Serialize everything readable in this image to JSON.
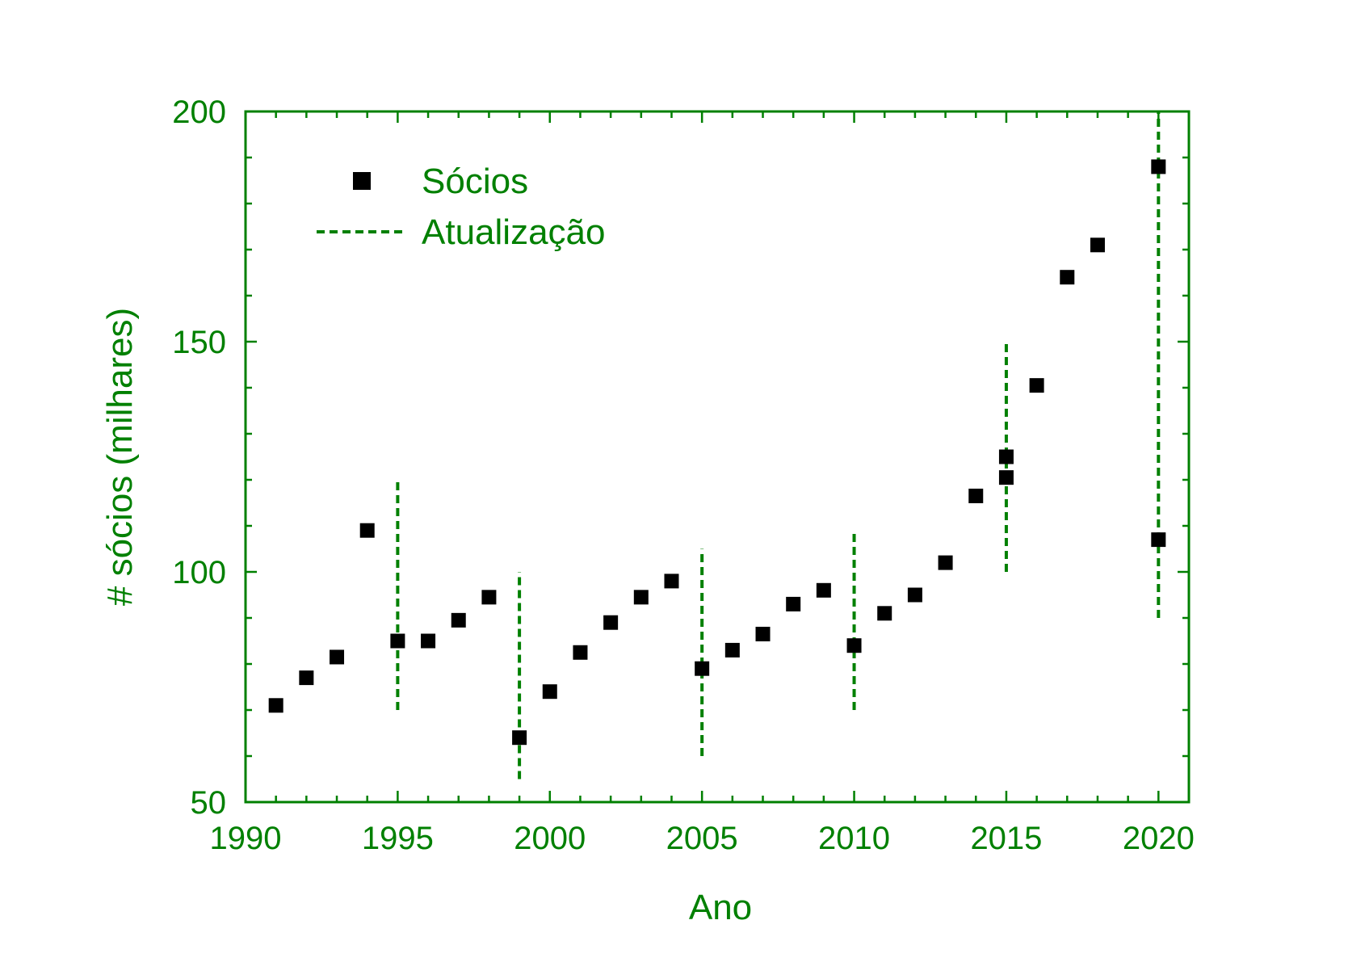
{
  "chart_data": {
    "type": "scatter",
    "title": "",
    "xlabel": "Ano",
    "ylabel": "# sócios (milhares)",
    "xlim": [
      1990,
      2021
    ],
    "ylim": [
      50,
      200
    ],
    "x_ticks": [
      1990,
      1995,
      2000,
      2005,
      2010,
      2015,
      2020
    ],
    "y_ticks": [
      50,
      100,
      150,
      200
    ],
    "x_tick_labels": [
      "1990",
      "1995",
      "2000",
      "2005",
      "2010",
      "2015",
      "2020"
    ],
    "y_tick_labels": [
      "50",
      "100",
      "150",
      "200"
    ],
    "x_minor_step": 1,
    "y_minor_step": 10,
    "grid": false,
    "legend_position": "top-left",
    "colors": {
      "axis": "#008000",
      "marker": "#000000",
      "dashed": "#008000"
    },
    "series": [
      {
        "name": "Sócios",
        "marker": "square",
        "points": [
          {
            "x": 1991,
            "y": 71
          },
          {
            "x": 1992,
            "y": 77
          },
          {
            "x": 1993,
            "y": 81.5
          },
          {
            "x": 1994,
            "y": 109
          },
          {
            "x": 1995,
            "y": 85
          },
          {
            "x": 1996,
            "y": 85
          },
          {
            "x": 1997,
            "y": 89.5
          },
          {
            "x": 1998,
            "y": 94.5
          },
          {
            "x": 1999,
            "y": 64
          },
          {
            "x": 2000,
            "y": 74
          },
          {
            "x": 2001,
            "y": 82.5
          },
          {
            "x": 2002,
            "y": 89
          },
          {
            "x": 2003,
            "y": 94.5
          },
          {
            "x": 2004,
            "y": 98
          },
          {
            "x": 2005,
            "y": 79
          },
          {
            "x": 2006,
            "y": 83
          },
          {
            "x": 2007,
            "y": 86.5
          },
          {
            "x": 2008,
            "y": 93
          },
          {
            "x": 2009,
            "y": 96
          },
          {
            "x": 2010,
            "y": 84
          },
          {
            "x": 2011,
            "y": 91
          },
          {
            "x": 2012,
            "y": 95
          },
          {
            "x": 2013,
            "y": 102
          },
          {
            "x": 2014,
            "y": 116.5
          },
          {
            "x": 2015,
            "y": 120.5
          },
          {
            "x": 2015,
            "y": 125
          },
          {
            "x": 2016,
            "y": 140.5
          },
          {
            "x": 2017,
            "y": 164
          },
          {
            "x": 2018,
            "y": 171
          },
          {
            "x": 2020,
            "y": 107
          },
          {
            "x": 2020,
            "y": 188
          }
        ]
      },
      {
        "name": "Atualização",
        "style": "dashed-vertical",
        "segments": [
          {
            "x": 1995,
            "y_from": 70,
            "y_to": 120
          },
          {
            "x": 1999,
            "y_from": 55,
            "y_to": 100
          },
          {
            "x": 2005,
            "y_from": 60,
            "y_to": 105
          },
          {
            "x": 2010,
            "y_from": 70,
            "y_to": 109
          },
          {
            "x": 2015,
            "y_from": 100,
            "y_to": 150
          },
          {
            "x": 2020,
            "y_from": 90,
            "y_to": 200
          }
        ]
      }
    ]
  }
}
